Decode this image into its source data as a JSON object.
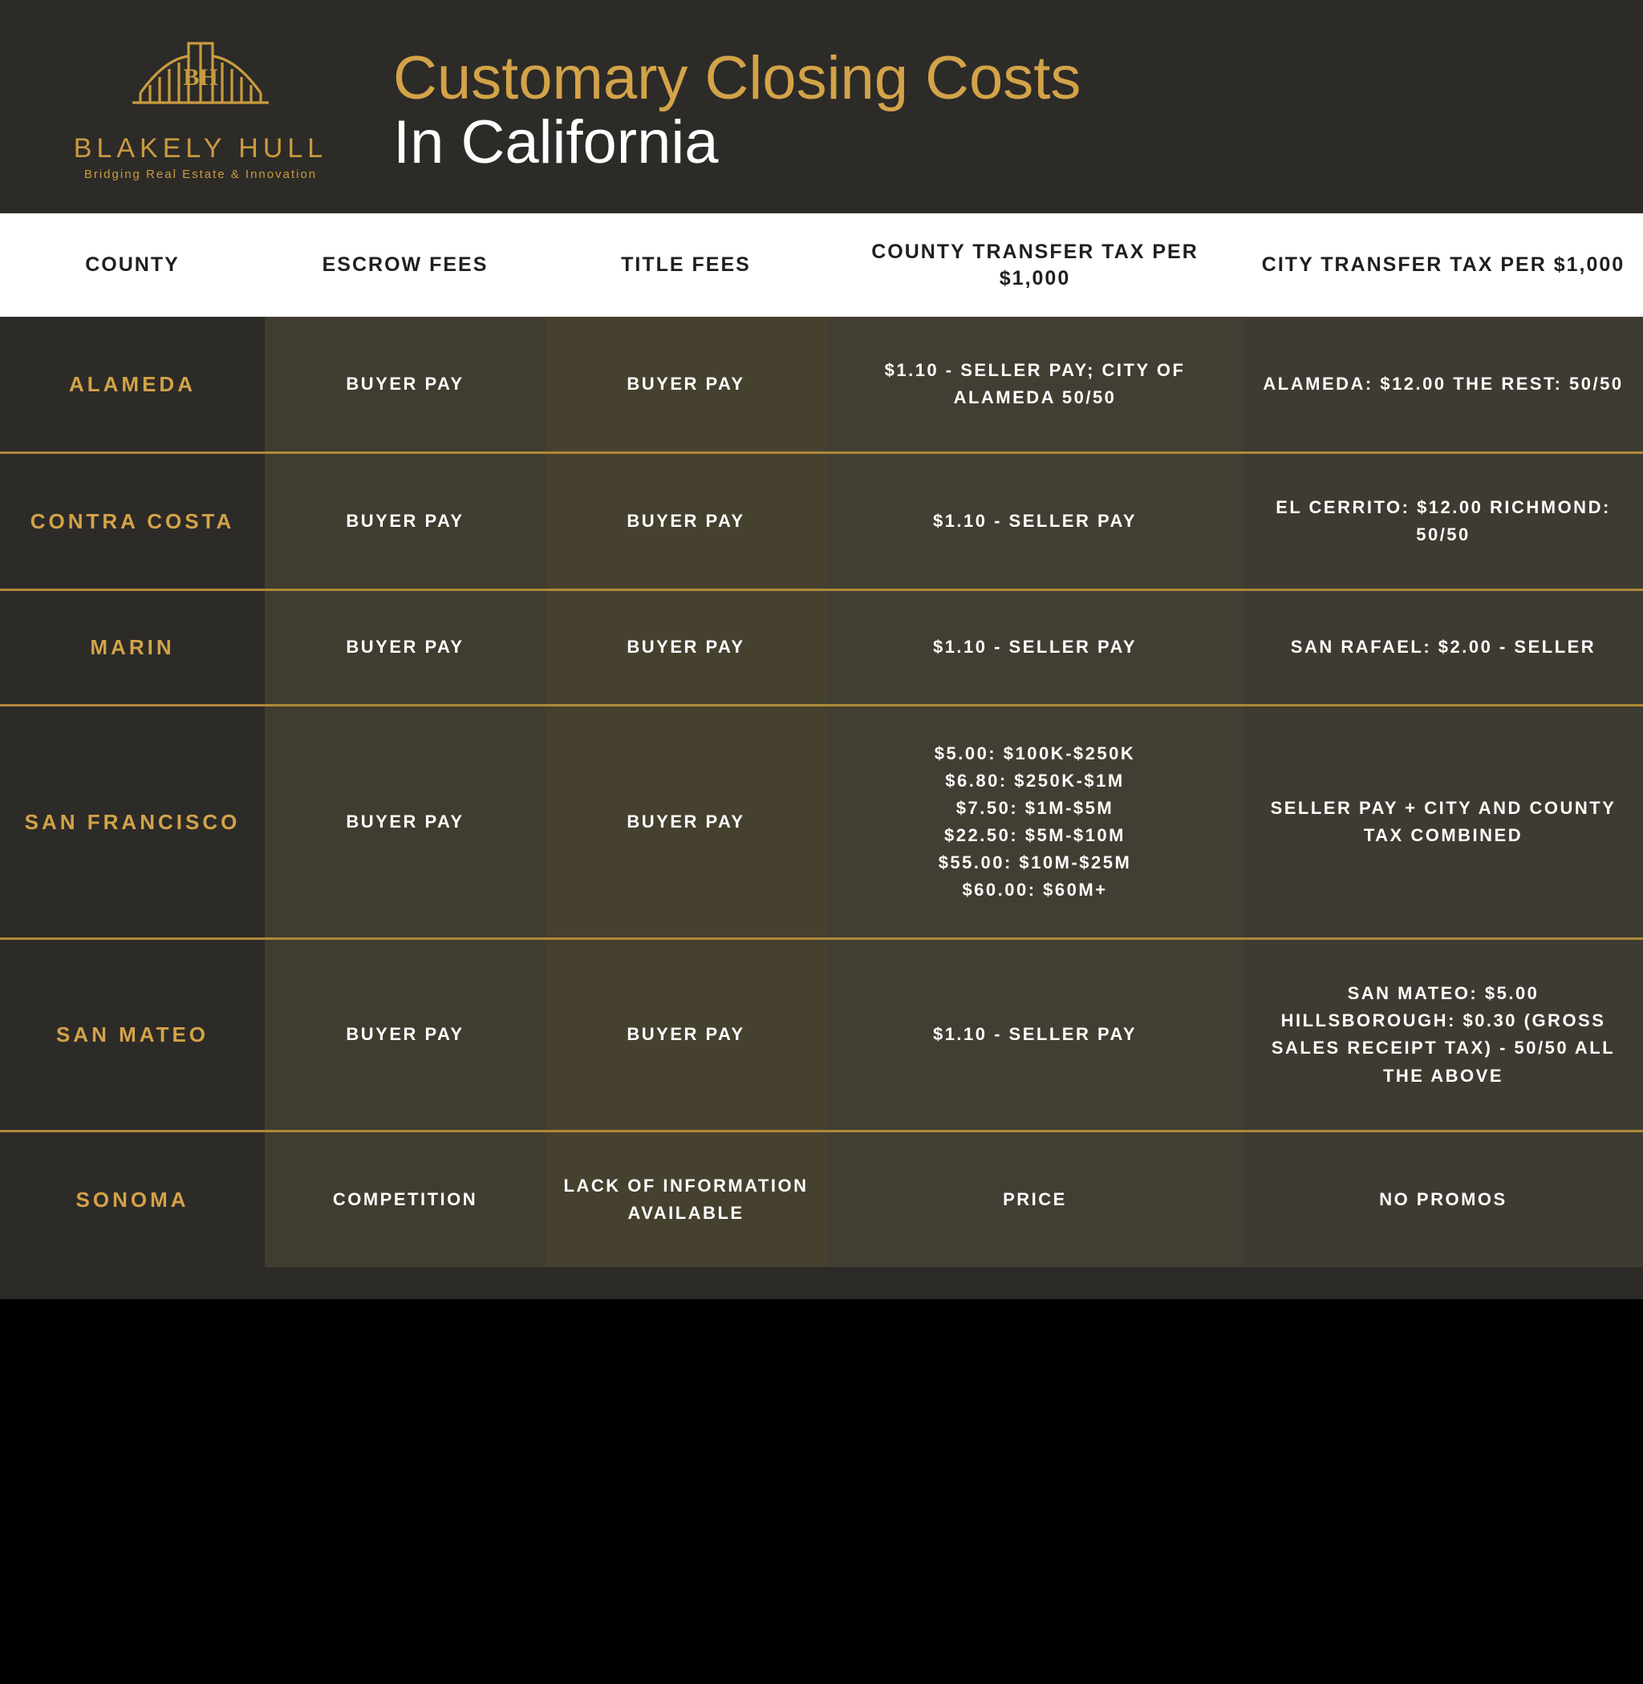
{
  "colors": {
    "bg": "#2d2b28",
    "gold": "#d3a348",
    "gold2": "#c99b3f",
    "separator": "#b08838",
    "col1": "#413c30",
    "col2": "#46412f",
    "col3": "#423e33",
    "col4": "#3f3b32"
  },
  "logo": {
    "name": "BLAKELY HULL",
    "tagline": "Bridging Real Estate & Innovation"
  },
  "title": {
    "main": "Customary Closing Costs",
    "sub": "In California"
  },
  "columns": [
    "COUNTY",
    "ESCROW FEES",
    "TITLE FEES",
    "COUNTY TRANSFER TAX PER $1,000",
    "CITY TRANSFER TAX PER $1,000"
  ],
  "rows": [
    {
      "county": "ALAMEDA",
      "escrow": "BUYER PAY",
      "title": "BUYER PAY",
      "county_tax": "$1.10 - SELLER PAY; CITY OF ALAMEDA 50/50",
      "city_tax": "ALAMEDA: $12.00 THE REST: 50/50"
    },
    {
      "county": "CONTRA COSTA",
      "escrow": "BUYER PAY",
      "title": "BUYER PAY",
      "county_tax": "$1.10 - SELLER PAY",
      "city_tax": "EL CERRITO: $12.00 RICHMOND: 50/50"
    },
    {
      "county": "MARIN",
      "escrow": "BUYER PAY",
      "title": "BUYER PAY",
      "county_tax": "$1.10 - SELLER PAY",
      "city_tax": "SAN RAFAEL: $2.00 - SELLER"
    },
    {
      "county": "SAN FRANCISCO",
      "escrow": "BUYER PAY",
      "title": "BUYER PAY",
      "county_tax": "$5.00: $100K-$250K\n$6.80: $250K-$1M\n$7.50: $1M-$5M\n$22.50: $5M-$10M\n$55.00: $10M-$25M\n$60.00: $60M+",
      "city_tax": "SELLER PAY + CITY AND COUNTY TAX COMBINED"
    },
    {
      "county": "SAN MATEO",
      "escrow": "BUYER PAY",
      "title": "BUYER PAY",
      "county_tax": "$1.10 - SELLER PAY",
      "city_tax": "SAN MATEO: $5.00 HILLSBOROUGH: $0.30 (GROSS SALES RECEIPT TAX) - 50/50 ALL THE ABOVE"
    },
    {
      "county": "SONOMA",
      "escrow": "COMPETITION",
      "title": "LACK OF INFORMATION AVAILABLE",
      "county_tax": "PRICE",
      "city_tax": "NO PROMOS"
    }
  ]
}
